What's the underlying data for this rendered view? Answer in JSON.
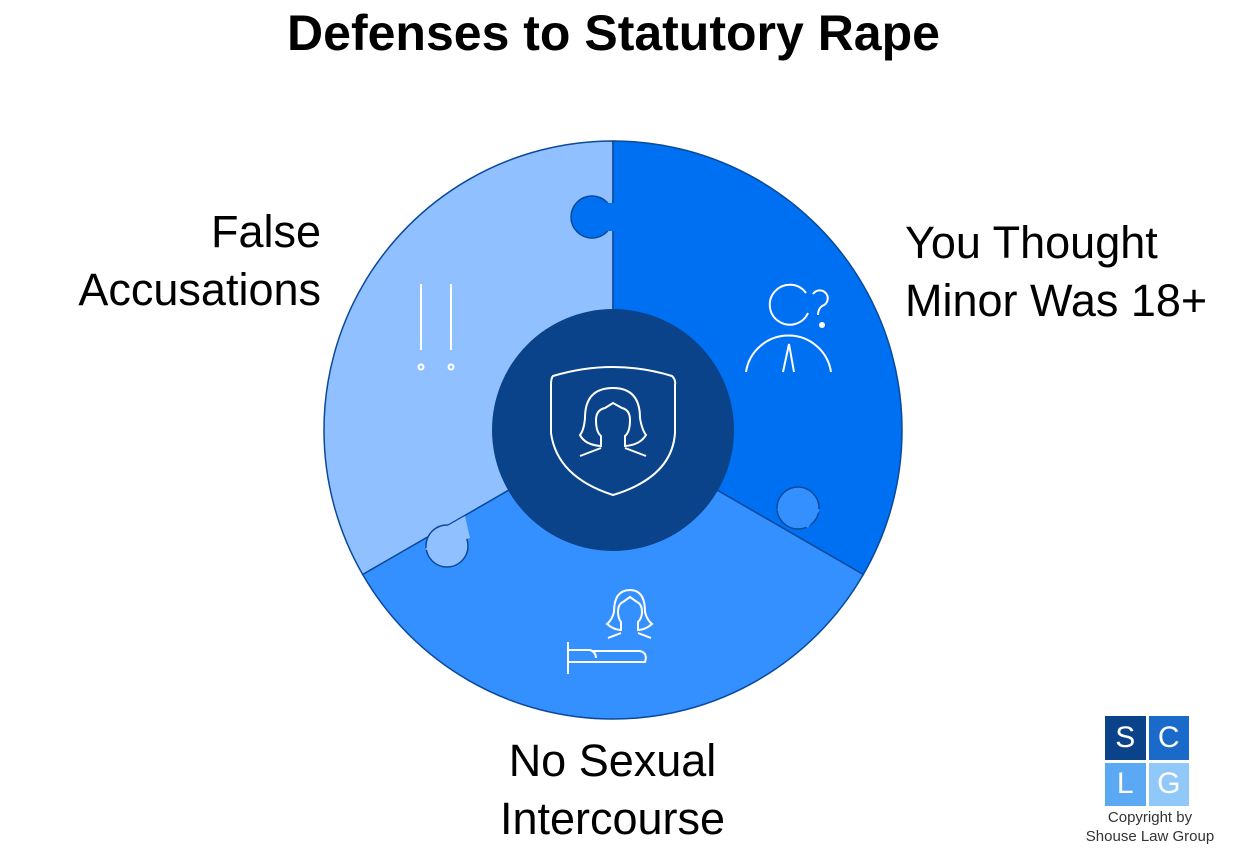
{
  "title": "Defenses to Statutory Rape",
  "segments": [
    {
      "label": "False Accusations",
      "label_lines": [
        "False",
        "Accusations"
      ],
      "color": "#90C0FF",
      "icon": "double-exclamation-icon"
    },
    {
      "label": "You Thought Minor Was 18+",
      "label_lines": [
        "You Thought",
        "Minor Was 18+"
      ],
      "color": "#0070F2",
      "icon": "person-question-icon"
    },
    {
      "label": "No Sexual Intercourse",
      "label_lines": [
        "No Sexual",
        "Intercourse"
      ],
      "color": "#3590FF",
      "icon": "woman-bed-icon"
    }
  ],
  "center": {
    "color": "#0A4389",
    "icon": "shield-woman-icon"
  },
  "logo": {
    "letters": [
      "S",
      "C",
      "L",
      "G"
    ],
    "colors": [
      "#0A4389",
      "#1A6BC9",
      "#5AA9F2",
      "#90C8FA"
    ]
  },
  "copyright": [
    "Copyright by",
    "Shouse Law Group"
  ]
}
